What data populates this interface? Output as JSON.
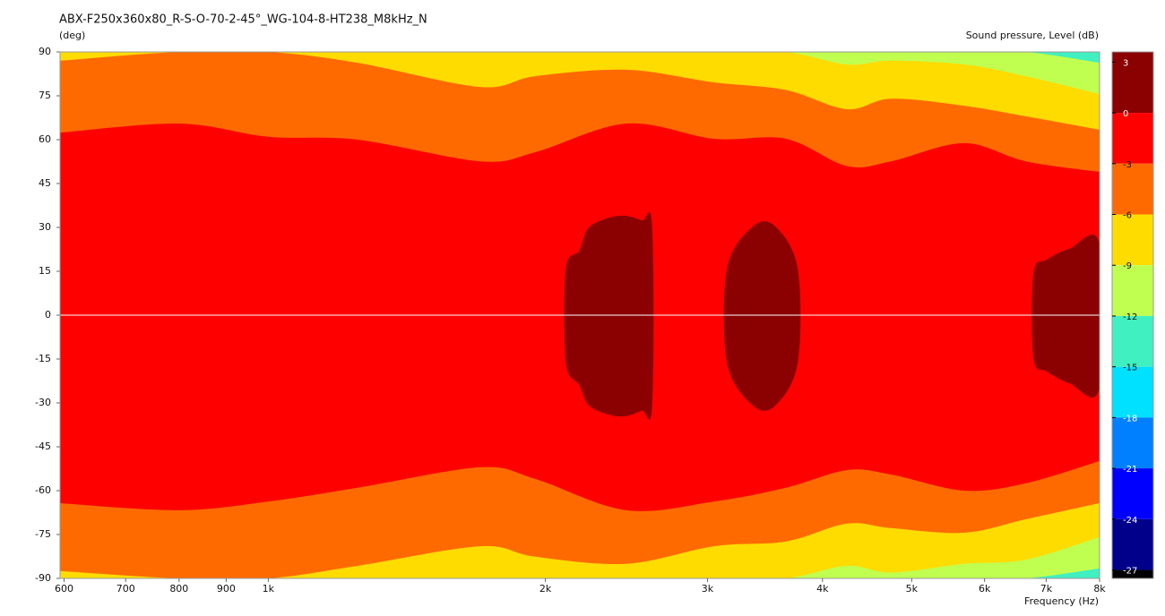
{
  "chart_data": {
    "type": "contour",
    "title": "ABX-F250x360x80_R-S-O-70-2-45°_WG-104-8-HT238_M8kHz_N",
    "y_label": "(deg)",
    "x_label": "Frequency  (Hz)",
    "colorbar_label": "Sound pressure, Level  (dB)",
    "x_scale": "log",
    "xlim": [
      594,
      8000
    ],
    "xticks": [
      600,
      700,
      800,
      900,
      {
        "value": 1000,
        "label": "1k"
      },
      {
        "value": 2000,
        "label": "2k"
      },
      {
        "value": 3000,
        "label": "3k"
      },
      {
        "value": 4000,
        "label": "4k"
      },
      {
        "value": 5000,
        "label": "5k"
      },
      {
        "value": 6000,
        "label": "6k"
      },
      {
        "value": 7000,
        "label": "7k"
      },
      {
        "value": 8000,
        "label": "8k"
      }
    ],
    "ylim": [
      -90,
      90
    ],
    "yticks": [
      90,
      75,
      60,
      45,
      30,
      15,
      0,
      -15,
      -30,
      -45,
      -60,
      -75,
      -90
    ],
    "zero_line": true,
    "clim": [
      -27.5,
      3.6
    ],
    "colorbar_ticks": [
      3,
      0,
      -3,
      -6,
      -9,
      -12,
      -15,
      -18,
      -21,
      -24,
      -27
    ],
    "colorbar_colors": [
      "#8b0000",
      "#ff0000",
      "#ff6a00",
      "#ffdc00",
      "#c0ff50",
      "#40f0c0",
      "#00e0ff",
      "#0080ff",
      "#0000ff",
      "#00008b",
      "#000000"
    ],
    "x": [
      594,
      800,
      1000,
      1250,
      1700,
      1950,
      2450,
      3050,
      3650,
      4250,
      4750,
      5700,
      6650,
      8000
    ],
    "contours": [
      {
        "level": -12,
        "upper": [
          90,
          90,
          90,
          90,
          90,
          90,
          90,
          90,
          90,
          90,
          90,
          90,
          90,
          86.3
        ],
        "lower": [
          -90,
          -90,
          -90,
          -90,
          -90,
          -90,
          -90,
          -90,
          -90,
          -90,
          -90,
          -90,
          -90,
          -86.6
        ]
      },
      {
        "level": -9,
        "upper": [
          90,
          90,
          90,
          90,
          90,
          90,
          90,
          90,
          90,
          85.7,
          87,
          85.7,
          81.7,
          75.6
        ],
        "lower": [
          -90,
          -90,
          -90,
          -90,
          -90,
          -90,
          -90,
          -90,
          -90,
          -85.7,
          -88,
          -85,
          -83.6,
          -75.9
        ]
      },
      {
        "level": -6,
        "upper": [
          87,
          90,
          90,
          86.3,
          78,
          81.7,
          83.9,
          79.6,
          77,
          70.4,
          74,
          71.6,
          68,
          63.4
        ],
        "lower": [
          -87.5,
          -90,
          -90,
          -85.7,
          -79,
          -82.6,
          -85,
          -79,
          -77.4,
          -71.3,
          -72.8,
          -74.4,
          -69.8,
          -64.3
        ]
      },
      {
        "level": -3,
        "upper": [
          62.4,
          65.5,
          61,
          60,
          52.6,
          55.7,
          65.5,
          60.3,
          60.3,
          51,
          52.6,
          58.8,
          52.6,
          49
        ],
        "lower": [
          -64.3,
          -66.7,
          -63.7,
          -59,
          -52,
          -56,
          -66.7,
          -63.7,
          -59,
          -53,
          -54.5,
          -60,
          -57.5,
          -49.9
        ]
      }
    ],
    "islands": [
      {
        "level": 0,
        "x": [
          2226,
          2327,
          2435,
          2544,
          2613,
          2613,
          2544,
          2435,
          2327,
          2226,
          2177,
          2105,
          2105,
          2177
        ],
        "y": [
          29.7,
          33,
          34,
          32.4,
          30,
          -30.6,
          -32.7,
          -34.6,
          -33.7,
          -30.6,
          -23.9,
          -16.2,
          15.9,
          22
        ]
      },
      {
        "level": 0,
        "x": [
          3150,
          3360,
          3555,
          3760,
          3760,
          3555,
          3360,
          3150
        ],
        "y": [
          15.9,
          30.3,
          30.3,
          15.9,
          -16.2,
          -30.9,
          -30.9,
          -16.2
        ]
      },
      {
        "level": 0,
        "x": [
          6780,
          7015,
          7420,
          8000,
          8000,
          7420,
          7015,
          6780
        ],
        "y": [
          14.4,
          19,
          22.7,
          24.2,
          -24.8,
          -23.3,
          -19.3,
          -14.7
        ]
      }
    ]
  }
}
